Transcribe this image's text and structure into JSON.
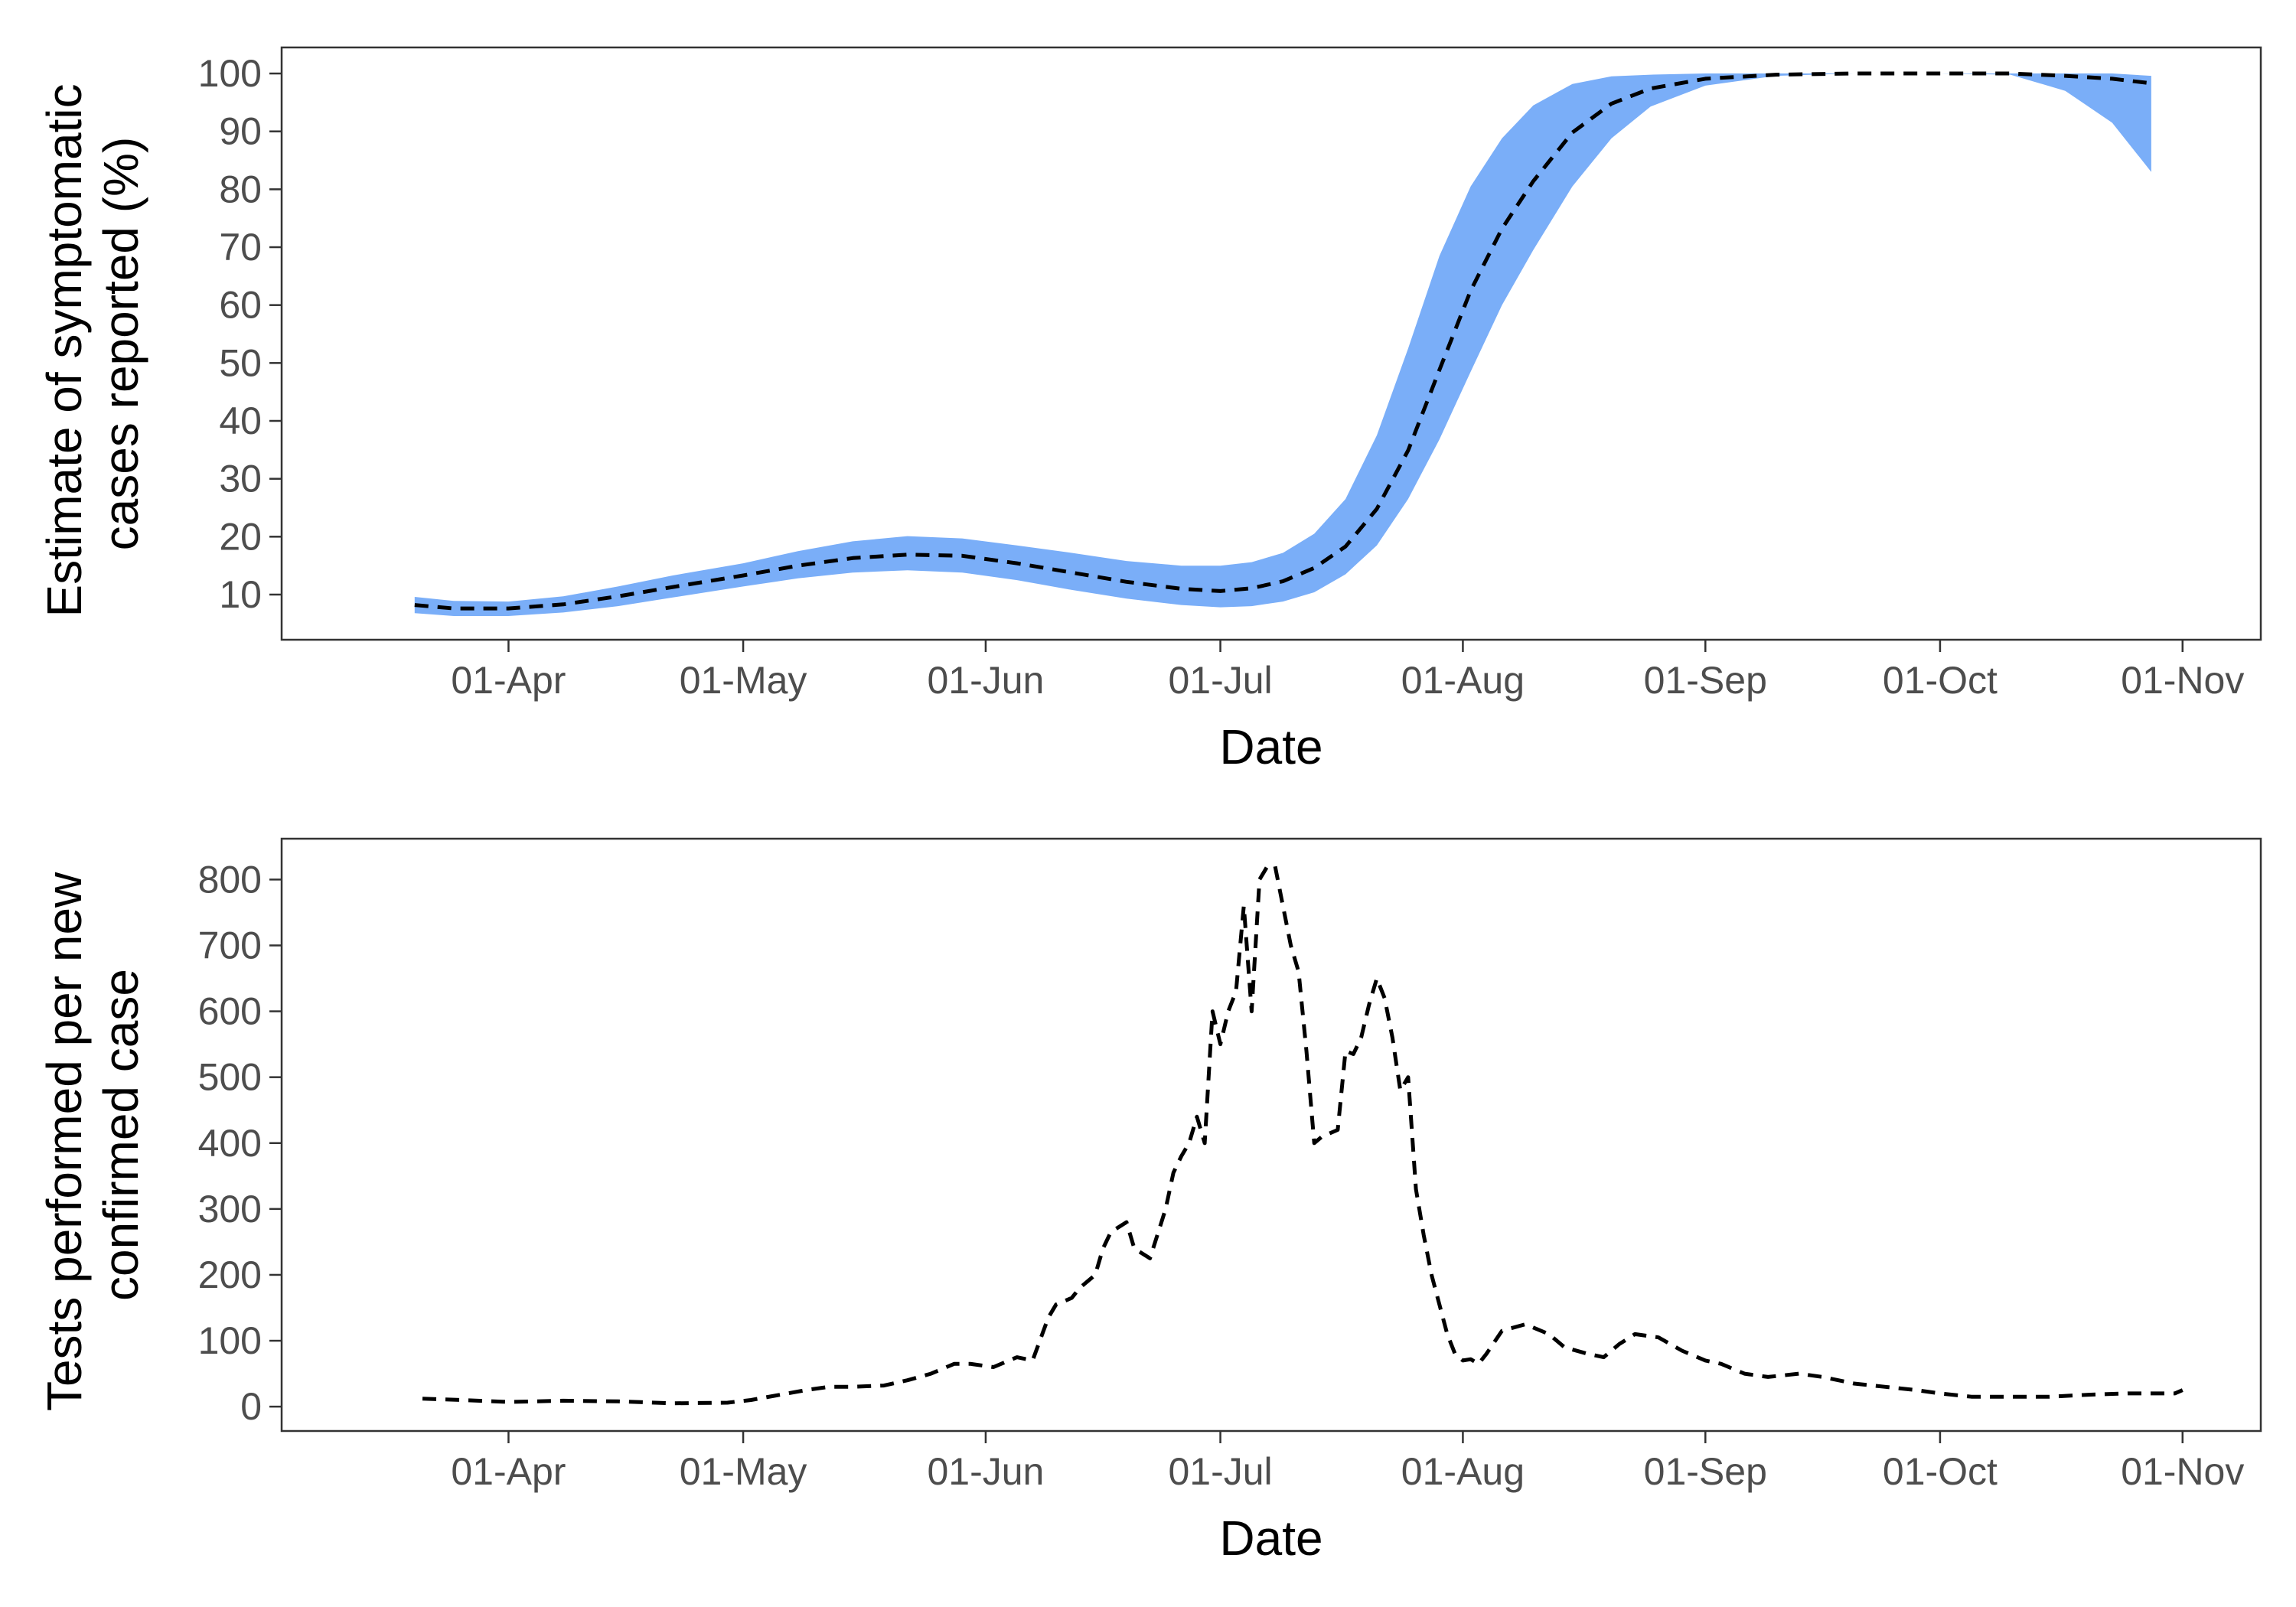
{
  "chart_data": [
    {
      "type": "area",
      "xlabel": "Date",
      "ylabel": [
        "Estimate of symptomatic",
        "cases reported (%)"
      ],
      "x_tick_labels": [
        "01-Apr",
        "01-May",
        "01-Jun",
        "01-Jul",
        "01-Aug",
        "01-Sep",
        "01-Oct",
        "01-Nov"
      ],
      "x_ticks": [
        "2020-04-01",
        "2020-05-01",
        "2020-06-01",
        "2020-07-01",
        "2020-08-01",
        "2020-09-01",
        "2020-10-01",
        "2020-11-01"
      ],
      "xlim": [
        "2020-03-03",
        "2020-11-11"
      ],
      "y_ticks": [
        10,
        20,
        30,
        40,
        50,
        60,
        70,
        80,
        90,
        100
      ],
      "ylim": [
        2.2,
        104.5
      ],
      "grid": false,
      "band_color": "#7aaef8",
      "line_color": "#000000",
      "line_style": "dashed",
      "series": [
        {
          "x": [
            "2020-03-20",
            "2020-03-25",
            "2020-04-01",
            "2020-04-08",
            "2020-04-15",
            "2020-04-22",
            "2020-05-01",
            "2020-05-08",
            "2020-05-15",
            "2020-05-22",
            "2020-05-29",
            "2020-06-05",
            "2020-06-12",
            "2020-06-19",
            "2020-06-26",
            "2020-07-01",
            "2020-07-05",
            "2020-07-09",
            "2020-07-13",
            "2020-07-17",
            "2020-07-21",
            "2020-07-25",
            "2020-07-29",
            "2020-08-02",
            "2020-08-06",
            "2020-08-10",
            "2020-08-15",
            "2020-08-20",
            "2020-08-25",
            "2020-09-01",
            "2020-09-10",
            "2020-09-20",
            "2020-10-01",
            "2020-10-10",
            "2020-10-17",
            "2020-10-23",
            "2020-10-28"
          ],
          "y": [
            8.2,
            7.6,
            7.6,
            8.3,
            9.7,
            11.3,
            13.3,
            15,
            16.3,
            16.9,
            16.7,
            15.4,
            13.8,
            12.2,
            11,
            10.6,
            11.1,
            12.3,
            14.6,
            18.3,
            24.8,
            34.9,
            48.8,
            62.5,
            73.2,
            81.4,
            89.8,
            94.8,
            97.4,
            99.1,
            99.8,
            100,
            100,
            100,
            99.6,
            99.1,
            98.3
          ],
          "lower": [
            6.8,
            6.3,
            6.3,
            6.9,
            8,
            9.5,
            11.4,
            12.8,
            13.8,
            14.2,
            13.8,
            12.5,
            10.8,
            9.3,
            8.2,
            7.8,
            8,
            8.8,
            10.4,
            13.5,
            18.5,
            26.5,
            36.8,
            48.5,
            60,
            69.5,
            80.5,
            88.8,
            94.3,
            97.9,
            99.6,
            100,
            100,
            99.8,
            97,
            91.5,
            83
          ],
          "upper": [
            9.6,
            8.9,
            8.8,
            9.7,
            11.4,
            13.3,
            15.4,
            17.5,
            19.2,
            20.1,
            19.7,
            18.5,
            17.2,
            15.8,
            15,
            15,
            15.6,
            17.2,
            20.5,
            26.5,
            37.5,
            52.5,
            68.5,
            80.5,
            88.8,
            94.5,
            98.2,
            99.5,
            99.8,
            100,
            100,
            100,
            100,
            100,
            100,
            100,
            99.6
          ]
        }
      ]
    },
    {
      "type": "line",
      "xlabel": "Date",
      "ylabel": [
        "Tests performed per new",
        "confirmed case"
      ],
      "x_tick_labels": [
        "01-Apr",
        "01-May",
        "01-Jun",
        "01-Jul",
        "01-Aug",
        "01-Sep",
        "01-Oct",
        "01-Nov"
      ],
      "x_ticks": [
        "2020-04-01",
        "2020-05-01",
        "2020-06-01",
        "2020-07-01",
        "2020-08-01",
        "2020-09-01",
        "2020-10-01",
        "2020-11-01"
      ],
      "xlim": [
        "2020-03-03",
        "2020-11-11"
      ],
      "y_ticks": [
        0,
        100,
        200,
        300,
        400,
        500,
        600,
        700,
        800
      ],
      "ylim": [
        -37,
        862
      ],
      "grid": false,
      "line_color": "#000000",
      "line_style": "dashed",
      "series": [
        {
          "x": [
            "2020-03-21",
            "2020-03-26",
            "2020-04-01",
            "2020-04-08",
            "2020-04-15",
            "2020-04-22",
            "2020-04-29",
            "2020-05-02",
            "2020-05-09",
            "2020-05-12",
            "2020-05-15",
            "2020-05-19",
            "2020-05-22",
            "2020-05-25",
            "2020-05-28",
            "2020-05-30",
            "2020-06-02",
            "2020-06-05",
            "2020-06-07",
            "2020-06-09",
            "2020-06-10",
            "2020-06-12",
            "2020-06-13",
            "2020-06-15",
            "2020-06-16",
            "2020-06-17",
            "2020-06-19",
            "2020-06-20",
            "2020-06-22",
            "2020-06-24",
            "2020-06-25",
            "2020-06-26",
            "2020-06-27",
            "2020-06-28",
            "2020-06-29",
            "2020-06-30",
            "2020-07-01",
            "2020-07-02",
            "2020-07-03",
            "2020-07-04",
            "2020-07-05",
            "2020-07-06",
            "2020-07-07",
            "2020-07-08",
            "2020-07-09",
            "2020-07-10",
            "2020-07-11",
            "2020-07-12",
            "2020-07-13",
            "2020-07-14",
            "2020-07-16",
            "2020-07-17",
            "2020-07-18",
            "2020-07-19",
            "2020-07-20",
            "2020-07-21",
            "2020-07-22",
            "2020-07-23",
            "2020-07-24",
            "2020-07-25",
            "2020-07-26",
            "2020-07-27",
            "2020-07-28",
            "2020-07-30",
            "2020-07-31",
            "2020-08-01",
            "2020-08-02",
            "2020-08-03",
            "2020-08-04",
            "2020-08-06",
            "2020-08-09",
            "2020-08-12",
            "2020-08-14",
            "2020-08-17",
            "2020-08-19",
            "2020-08-21",
            "2020-08-23",
            "2020-08-26",
            "2020-08-29",
            "2020-09-01",
            "2020-09-03",
            "2020-09-06",
            "2020-09-09",
            "2020-09-13",
            "2020-09-16",
            "2020-09-20",
            "2020-09-24",
            "2020-09-28",
            "2020-10-01",
            "2020-10-05",
            "2020-10-10",
            "2020-10-15",
            "2020-10-20",
            "2020-10-25",
            "2020-10-31",
            "2020-11-01"
          ],
          "y": [
            12,
            10,
            7,
            9,
            8,
            5,
            6,
            10,
            25,
            30,
            30,
            32,
            40,
            50,
            65,
            65,
            60,
            75,
            70,
            135,
            155,
            165,
            180,
            200,
            240,
            265,
            280,
            240,
            225,
            300,
            355,
            380,
            400,
            440,
            400,
            600,
            550,
            600,
            630,
            760,
            600,
            800,
            820,
            820,
            760,
            700,
            660,
            540,
            400,
            410,
            420,
            540,
            535,
            560,
            610,
            650,
            620,
            560,
            480,
            500,
            330,
            260,
            200,
            110,
            80,
            70,
            72,
            65,
            80,
            115,
            125,
            110,
            90,
            80,
            75,
            95,
            110,
            105,
            85,
            70,
            65,
            50,
            45,
            50,
            45,
            35,
            30,
            25,
            20,
            15,
            15,
            15,
            18,
            20,
            20,
            25
          ]
        }
      ]
    }
  ]
}
